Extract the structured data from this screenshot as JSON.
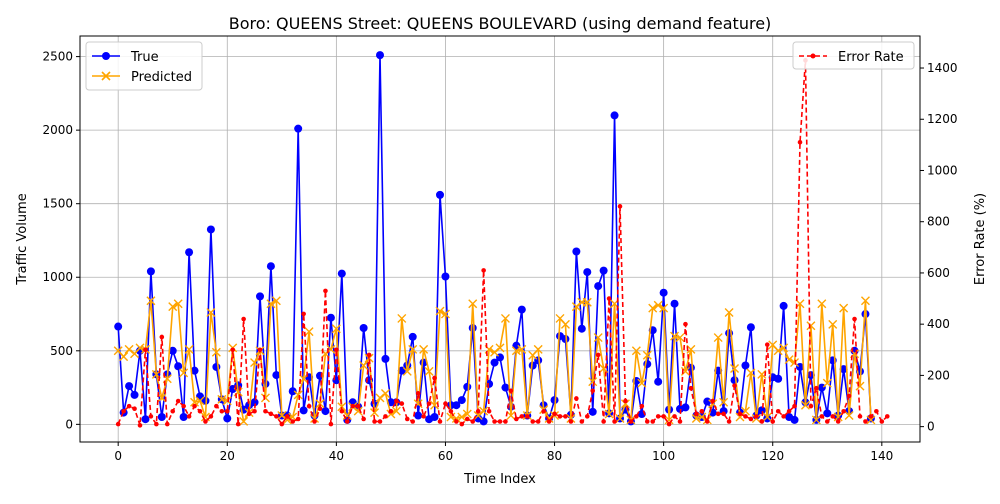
{
  "chart_data": {
    "type": "line",
    "title": "Boro: QUEENS Street: QUEENS BOULEVARD (using demand feature)",
    "xlabel": "Time Index",
    "ylabel_left": "Traffic Volume",
    "ylabel_right": "Error Rate (%)",
    "xlim": [
      -7,
      147
    ],
    "ylim_left": [
      -120,
      2640
    ],
    "ylim_right": [
      -60,
      1525
    ],
    "x_ticks": [
      0,
      20,
      40,
      60,
      80,
      100,
      120,
      140
    ],
    "y_left_ticks": [
      0,
      500,
      1000,
      1500,
      2000,
      2500
    ],
    "y_right_ticks": [
      0,
      200,
      400,
      600,
      800,
      1000,
      1200,
      1400
    ],
    "grid": true,
    "legend_left": "upper left",
    "legend_right": "upper right",
    "colors": {
      "true": "#0000ff",
      "predicted": "#ffa500",
      "error": "#ff0000"
    },
    "series": [
      {
        "name": "True",
        "axis": "left",
        "marker": "circle",
        "values": [
          665,
          80,
          260,
          200,
          500,
          35,
          1040,
          340,
          50,
          340,
          500,
          395,
          50,
          1170,
          365,
          190,
          160,
          1325,
          390,
          170,
          40,
          240,
          265,
          100,
          130,
          150,
          870,
          275,
          1075,
          335,
          60,
          60,
          225,
          2010,
          95,
          320,
          60,
          330,
          90,
          725,
          300,
          1025,
          30,
          150,
          120,
          655,
          300,
          140,
          2510,
          445,
          150,
          150,
          365,
          400,
          595,
          60,
          420,
          35,
          50,
          1560,
          1005,
          130,
          130,
          165,
          255,
          655,
          40,
          20,
          275,
          420,
          455,
          250,
          120,
          535,
          780,
          60,
          400,
          435,
          130,
          40,
          165,
          600,
          580,
          65,
          1175,
          650,
          1035,
          85,
          940,
          1045,
          75,
          2100,
          40,
          100,
          20,
          295,
          70,
          410,
          640,
          290,
          895,
          100,
          820,
          105,
          115,
          385,
          60,
          50,
          155,
          80,
          365,
          90,
          620,
          300,
          80,
          400,
          660,
          60,
          95,
          40,
          320,
          310,
          805,
          50,
          30,
          390,
          150,
          335,
          30,
          250,
          75,
          435,
          60,
          375,
          90,
          500,
          360,
          750,
          40
        ]
      },
      {
        "name": "Predicted",
        "axis": "left",
        "marker": "x",
        "values": [
          500,
          460,
          510,
          480,
          520,
          510,
          840,
          340,
          180,
          310,
          800,
          820,
          350,
          510,
          150,
          160,
          50,
          760,
          490,
          170,
          160,
          520,
          220,
          20,
          80,
          420,
          500,
          180,
          820,
          840,
          60,
          30,
          50,
          200,
          310,
          630,
          40,
          140,
          480,
          510,
          650,
          120,
          60,
          120,
          90,
          400,
          450,
          80,
          180,
          210,
          70,
          90,
          720,
          360,
          510,
          140,
          510,
          360,
          130,
          770,
          750,
          50,
          40,
          50,
          70,
          820,
          60,
          90,
          510,
          490,
          520,
          720,
          60,
          500,
          510,
          60,
          470,
          510,
          100,
          40,
          60,
          720,
          680,
          40,
          800,
          830,
          830,
          290,
          590,
          380,
          70,
          820,
          40,
          140,
          30,
          500,
          280,
          470,
          790,
          810,
          790,
          30,
          600,
          590,
          360,
          510,
          40,
          50,
          30,
          140,
          590,
          150,
          760,
          380,
          50,
          90,
          350,
          40,
          340,
          50,
          540,
          500,
          520,
          440,
          420,
          820,
          130,
          670,
          30,
          820,
          280,
          680,
          50,
          790,
          60,
          480,
          260,
          840,
          30
        ]
      },
      {
        "name": "Error Rate",
        "axis": "right",
        "marker": "dot",
        "values": [
          10,
          60,
          80,
          70,
          5,
          300,
          40,
          10,
          350,
          10,
          60,
          100,
          80,
          40,
          80,
          60,
          20,
          40,
          80,
          60,
          60,
          300,
          10,
          420,
          50,
          60,
          300,
          60,
          50,
          40,
          10,
          40,
          20,
          30,
          440,
          80,
          20,
          70,
          530,
          10,
          300,
          60,
          20,
          80,
          80,
          30,
          280,
          20,
          20,
          40,
          60,
          100,
          90,
          30,
          20,
          130,
          40,
          90,
          190,
          20,
          90,
          60,
          20,
          10,
          30,
          20,
          60,
          610,
          60,
          20,
          20,
          20,
          140,
          30,
          40,
          40,
          20,
          20,
          60,
          20,
          50,
          40,
          40,
          20,
          110,
          20,
          40,
          140,
          280,
          20,
          500,
          20,
          860,
          100,
          20,
          40,
          80,
          20,
          20,
          40,
          40,
          10,
          40,
          20,
          400,
          150,
          50,
          60,
          20,
          100,
          50,
          50,
          20,
          160,
          50,
          40,
          30,
          40,
          20,
          320,
          20,
          60,
          40,
          60,
          80,
          1110,
          1430,
          80,
          150,
          40,
          20,
          40,
          20,
          60,
          120,
          420,
          40,
          20,
          40,
          60,
          20,
          40
        ]
      }
    ]
  }
}
